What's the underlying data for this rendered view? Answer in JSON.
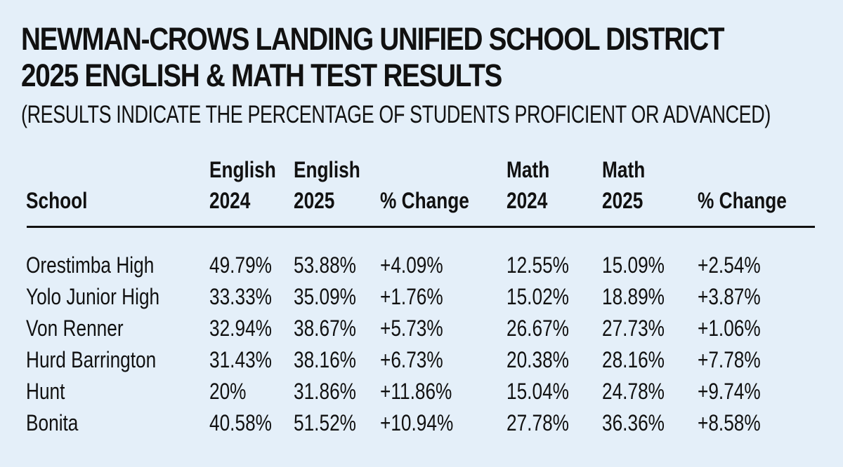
{
  "title_line1": "NEWMAN-CROWS LANDING UNIFIED SCHOOL DISTRICT",
  "title_line2": "2025 ENGLISH & MATH TEST RESULTS",
  "subtitle": "(RESULTS INDICATE THE PERCENTAGE OF STUDENTS PROFICIENT OR ADVANCED)",
  "header": {
    "school": "School",
    "english_2024_top": "English",
    "english_2024_bottom": "2024",
    "english_2025_top": "English",
    "english_2025_bottom": "2025",
    "english_change": "% Change",
    "math_2024_top": "Math",
    "math_2024_bottom": "2024",
    "math_2025_top": "Math",
    "math_2025_bottom": "2025",
    "math_change": "% Change"
  },
  "chart_data": {
    "type": "table",
    "title": "NEWMAN-CROWS LANDING UNIFIED SCHOOL DISTRICT 2025 ENGLISH & MATH TEST RESULTS",
    "subtitle": "(RESULTS INDICATE THE PERCENTAGE OF STUDENTS PROFICIENT OR ADVANCED)",
    "columns": [
      "School",
      "English 2024",
      "English 2025",
      "% Change",
      "Math 2024",
      "Math 2025",
      "% Change"
    ],
    "rows": [
      [
        "Orestimba High",
        "49.79%",
        "53.88%",
        "+4.09%",
        "12.55%",
        "15.09%",
        "+2.54%"
      ],
      [
        "Yolo Junior High",
        "33.33%",
        "35.09%",
        "+1.76%",
        "15.02%",
        "18.89%",
        "+3.87%"
      ],
      [
        "Von Renner",
        "32.94%",
        "38.67%",
        "+5.73%",
        "26.67%",
        "27.73%",
        "+1.06%"
      ],
      [
        "Hurd Barrington",
        "31.43%",
        "38.16%",
        "+6.73%",
        "20.38%",
        "28.16%",
        "+7.78%"
      ],
      [
        "Hunt",
        "20%",
        "31.86%",
        "+11.86%",
        "15.04%",
        "24.78%",
        "+9.74%"
      ],
      [
        "Bonita",
        "40.58%",
        "51.52%",
        "+10.94%",
        "27.78%",
        "36.36%",
        "+8.58%"
      ]
    ]
  }
}
